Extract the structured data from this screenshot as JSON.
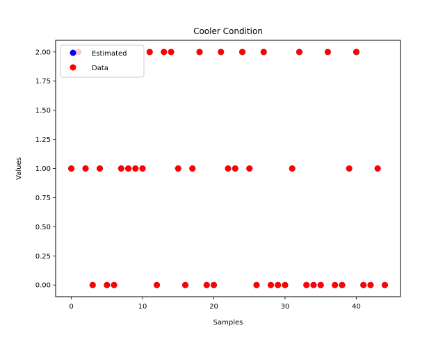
{
  "chart_data": {
    "type": "scatter",
    "title": "Cooler Condition",
    "xlabel": "Samples",
    "ylabel": "Values",
    "xlim": [
      -2.2,
      46.2
    ],
    "ylim": [
      -0.1,
      2.1
    ],
    "xticks": [
      0,
      10,
      20,
      30,
      40
    ],
    "xtick_labels": [
      "0",
      "10",
      "20",
      "30",
      "40"
    ],
    "yticks": [
      0,
      0.25,
      0.5,
      0.75,
      1.0,
      1.25,
      1.5,
      1.75,
      2.0
    ],
    "ytick_labels": [
      "0.00",
      "0.25",
      "0.50",
      "0.75",
      "1.00",
      "1.25",
      "1.50",
      "1.75",
      "2.00"
    ],
    "legend_position": "upper-left",
    "series": [
      {
        "name": "Estimated",
        "color": "#0000ff",
        "x": [
          0,
          1,
          2,
          3,
          4,
          5,
          6,
          7,
          8,
          9,
          10,
          11,
          12,
          13,
          14,
          15,
          16,
          17,
          18,
          19,
          20,
          21,
          22,
          23,
          24,
          25,
          26,
          27,
          28,
          29,
          30,
          31,
          32,
          33,
          34,
          35,
          36,
          37,
          38,
          39,
          40,
          41,
          42,
          43,
          44
        ],
        "values": [
          1,
          2,
          1,
          0,
          1,
          0,
          0,
          1,
          1,
          1,
          1,
          2,
          0,
          2,
          2,
          1,
          0,
          1,
          2,
          0,
          0,
          2,
          1,
          1,
          2,
          1,
          0,
          2,
          0,
          0,
          0,
          1,
          2,
          0,
          0,
          0,
          2,
          0,
          0,
          1,
          2,
          0,
          0,
          1,
          0
        ]
      },
      {
        "name": "Data",
        "color": "#ff0000",
        "x": [
          0,
          1,
          2,
          3,
          4,
          5,
          6,
          7,
          8,
          9,
          10,
          11,
          12,
          13,
          14,
          15,
          16,
          17,
          18,
          19,
          20,
          21,
          22,
          23,
          24,
          25,
          26,
          27,
          28,
          29,
          30,
          31,
          32,
          33,
          34,
          35,
          36,
          37,
          38,
          39,
          40,
          41,
          42,
          43,
          44
        ],
        "values": [
          1,
          2,
          1,
          0,
          1,
          0,
          0,
          1,
          1,
          1,
          1,
          2,
          0,
          2,
          2,
          1,
          0,
          1,
          2,
          0,
          0,
          2,
          1,
          1,
          2,
          1,
          0,
          2,
          0,
          0,
          0,
          1,
          2,
          0,
          0,
          0,
          2,
          0,
          0,
          1,
          2,
          0,
          0,
          1,
          0
        ]
      }
    ]
  }
}
